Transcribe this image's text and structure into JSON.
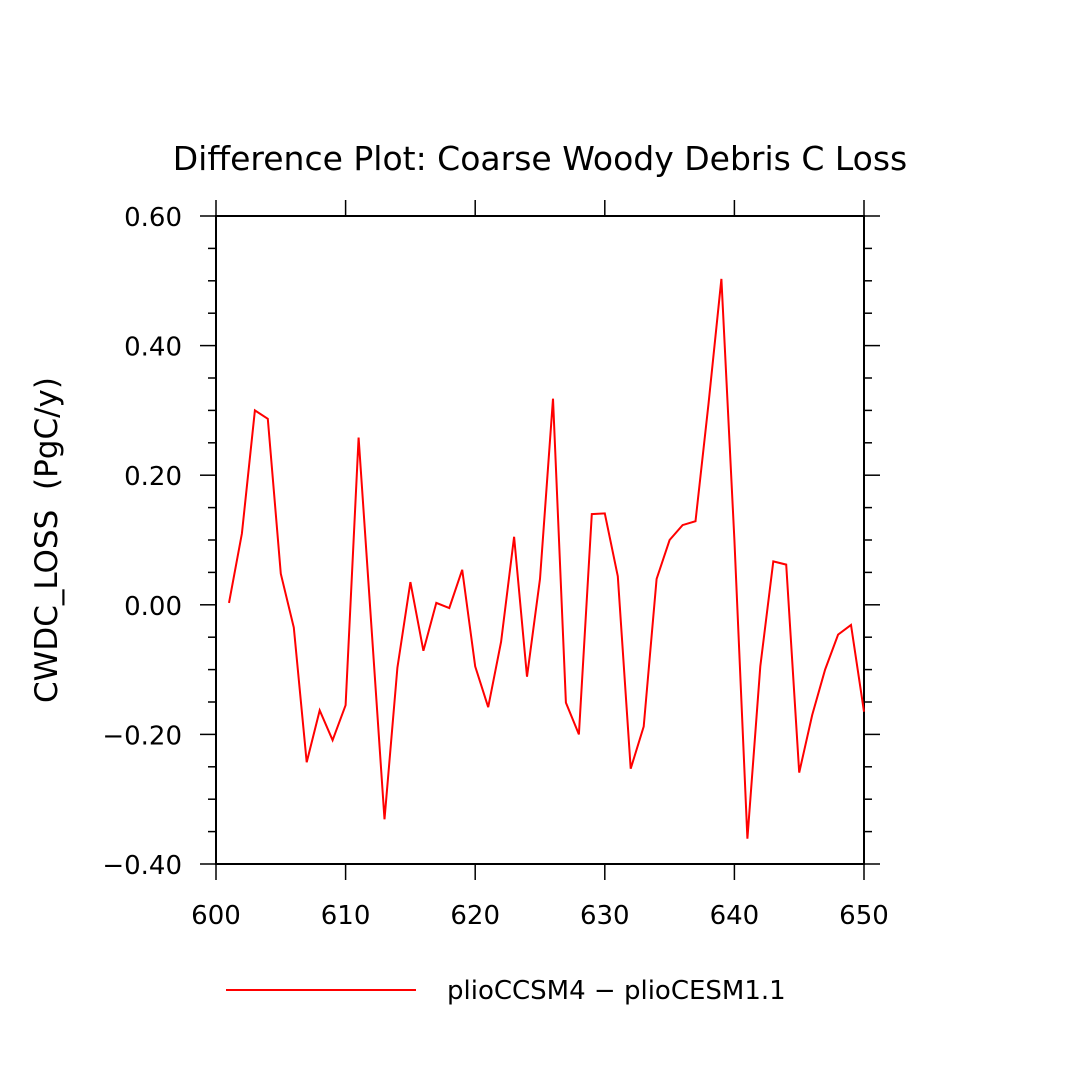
{
  "chart_data": {
    "type": "line",
    "title": "Difference Plot: Coarse Woody Debris C Loss",
    "xlabel": "",
    "ylabel": "CWDC_LOSS  (PgC/y)",
    "xlim": [
      600,
      650
    ],
    "ylim": [
      -0.4,
      0.6
    ],
    "x_ticks": [
      600,
      610,
      620,
      630,
      640,
      650
    ],
    "x_tick_labels": [
      "600",
      "610",
      "620",
      "630",
      "640",
      "650"
    ],
    "y_ticks": [
      -0.4,
      -0.2,
      0.0,
      0.2,
      0.4,
      0.6
    ],
    "y_tick_labels": [
      "−0.40",
      "−0.20",
      "0.00",
      "0.20",
      "0.40",
      "0.60"
    ],
    "grid": false,
    "legend_position": "bottom",
    "series": [
      {
        "name": "plioCCSM4 − plioCESM1.1",
        "color": "#ff0000",
        "x": [
          601,
          602,
          603,
          604,
          605,
          606,
          607,
          608,
          609,
          610,
          611,
          612,
          613,
          614,
          615,
          616,
          617,
          618,
          619,
          620,
          621,
          622,
          623,
          624,
          625,
          626,
          627,
          628,
          629,
          630,
          631,
          632,
          633,
          634,
          635,
          636,
          637,
          638,
          639,
          640,
          641,
          642,
          643,
          644,
          645,
          646,
          647,
          648,
          649,
          650
        ],
        "values": [
          0.003,
          0.11,
          0.3,
          0.287,
          0.048,
          -0.035,
          -0.243,
          -0.163,
          -0.209,
          -0.155,
          0.258,
          -0.035,
          -0.331,
          -0.097,
          0.035,
          -0.071,
          0.003,
          -0.005,
          0.054,
          -0.095,
          -0.158,
          -0.057,
          0.105,
          -0.111,
          0.04,
          0.318,
          -0.151,
          -0.2,
          0.14,
          0.141,
          0.044,
          -0.253,
          -0.188,
          0.04,
          0.1,
          0.123,
          0.129,
          0.31,
          0.503,
          0.1,
          -0.361,
          -0.095,
          0.067,
          0.062,
          -0.259,
          -0.17,
          -0.1,
          -0.046,
          -0.031,
          -0.165
        ]
      }
    ]
  }
}
